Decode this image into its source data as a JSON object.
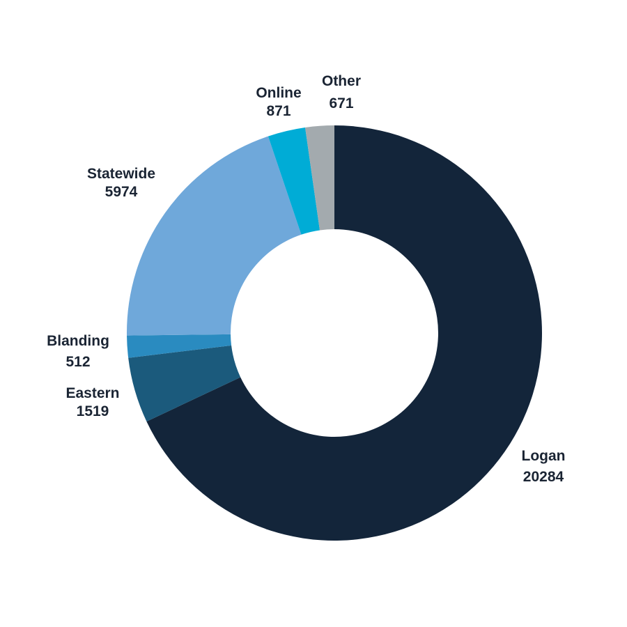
{
  "chart_data": {
    "type": "pie",
    "subtype": "donut",
    "title": "",
    "categories": [
      "Logan",
      "Eastern",
      "Blanding",
      "Statewide",
      "Online",
      "Other"
    ],
    "values": [
      20284,
      1519,
      512,
      5974,
      871,
      671
    ],
    "colors": [
      "#13253a",
      "#1b5a7c",
      "#2a8bc0",
      "#6fa8da",
      "#00acd6",
      "#a3aaae"
    ],
    "start_angle": "top",
    "direction": "clockwise",
    "legend": "none",
    "data_labels": "name and value outside"
  },
  "labels": [
    {
      "name": "Logan",
      "value": "20284"
    },
    {
      "name": "Eastern",
      "value": "1519"
    },
    {
      "name": "Blanding",
      "value": "512"
    },
    {
      "name": "Statewide",
      "value": "5974"
    },
    {
      "name": "Online",
      "value": "871"
    },
    {
      "name": "Other",
      "value": "671"
    }
  ]
}
